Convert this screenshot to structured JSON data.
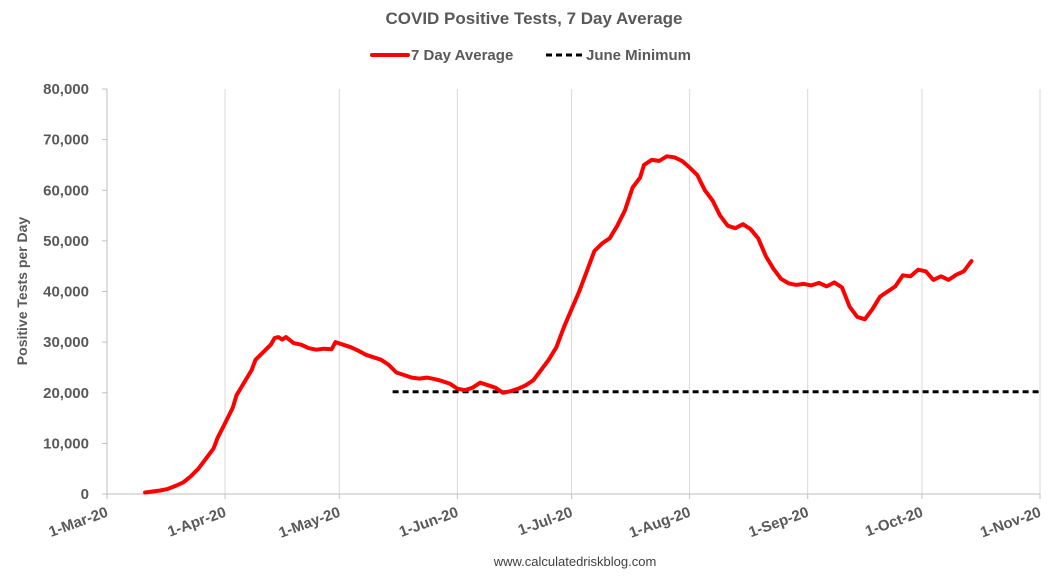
{
  "chart_data": {
    "type": "line",
    "title": "COVID Positive Tests, 7 Day Average",
    "ylabel": "Positive Tests per Day",
    "xlabel": "",
    "ylim": [
      0,
      80000
    ],
    "xlim": [
      "2020-03-01",
      "2020-11-01"
    ],
    "y_ticks": [
      0,
      10000,
      20000,
      30000,
      40000,
      50000,
      60000,
      70000,
      80000
    ],
    "y_tick_labels": [
      "0",
      "10,000",
      "20,000",
      "30,000",
      "40,000",
      "50,000",
      "60,000",
      "70,000",
      "80,000"
    ],
    "x_ticks": [
      "2020-03-01",
      "2020-04-01",
      "2020-05-01",
      "2020-06-01",
      "2020-07-01",
      "2020-08-01",
      "2020-09-01",
      "2020-10-01",
      "2020-11-01"
    ],
    "x_tick_labels": [
      "1-Mar-20",
      "1-Apr-20",
      "1-May-20",
      "1-Jun-20",
      "1-Jul-20",
      "1-Aug-20",
      "1-Sep-20",
      "1-Oct-20",
      "1-Nov-20"
    ],
    "grid": "vertical",
    "legend_position": "top-center",
    "series": [
      {
        "name": "7 Day Average",
        "color": "#ff0000",
        "style": "solid",
        "points": [
          [
            "2020-03-11",
            300
          ],
          [
            "2020-03-13",
            500
          ],
          [
            "2020-03-15",
            700
          ],
          [
            "2020-03-17",
            1000
          ],
          [
            "2020-03-19",
            1600
          ],
          [
            "2020-03-21",
            2300
          ],
          [
            "2020-03-23",
            3500
          ],
          [
            "2020-03-25",
            5000
          ],
          [
            "2020-03-27",
            7000
          ],
          [
            "2020-03-29",
            9000
          ],
          [
            "2020-03-30",
            11000
          ],
          [
            "2020-04-01",
            14000
          ],
          [
            "2020-04-03",
            17000
          ],
          [
            "2020-04-04",
            19500
          ],
          [
            "2020-04-06",
            22000
          ],
          [
            "2020-04-08",
            24500
          ],
          [
            "2020-04-09",
            26500
          ],
          [
            "2020-04-11",
            28000
          ],
          [
            "2020-04-13",
            29500
          ],
          [
            "2020-04-14",
            30800
          ],
          [
            "2020-04-15",
            31000
          ],
          [
            "2020-04-16",
            30500
          ],
          [
            "2020-04-17",
            31000
          ],
          [
            "2020-04-19",
            29800
          ],
          [
            "2020-04-21",
            29500
          ],
          [
            "2020-04-23",
            28800
          ],
          [
            "2020-04-25",
            28500
          ],
          [
            "2020-04-27",
            28700
          ],
          [
            "2020-04-29",
            28600
          ],
          [
            "2020-04-30",
            30000
          ],
          [
            "2020-05-02",
            29500
          ],
          [
            "2020-05-04",
            29000
          ],
          [
            "2020-05-06",
            28300
          ],
          [
            "2020-05-08",
            27500
          ],
          [
            "2020-05-10",
            27000
          ],
          [
            "2020-05-12",
            26500
          ],
          [
            "2020-05-14",
            25500
          ],
          [
            "2020-05-16",
            24000
          ],
          [
            "2020-05-18",
            23500
          ],
          [
            "2020-05-20",
            23000
          ],
          [
            "2020-05-22",
            22800
          ],
          [
            "2020-05-24",
            23000
          ],
          [
            "2020-05-26",
            22700
          ],
          [
            "2020-05-28",
            22300
          ],
          [
            "2020-05-30",
            21800
          ],
          [
            "2020-06-01",
            20800
          ],
          [
            "2020-06-03",
            20500
          ],
          [
            "2020-06-05",
            21000
          ],
          [
            "2020-06-07",
            22000
          ],
          [
            "2020-06-09",
            21500
          ],
          [
            "2020-06-11",
            21000
          ],
          [
            "2020-06-13",
            20000
          ],
          [
            "2020-06-15",
            20300
          ],
          [
            "2020-06-17",
            20800
          ],
          [
            "2020-06-19",
            21500
          ],
          [
            "2020-06-21",
            22500
          ],
          [
            "2020-06-23",
            24500
          ],
          [
            "2020-06-25",
            26500
          ],
          [
            "2020-06-27",
            29000
          ],
          [
            "2020-06-29",
            33000
          ],
          [
            "2020-07-01",
            36500
          ],
          [
            "2020-07-03",
            40000
          ],
          [
            "2020-07-05",
            44000
          ],
          [
            "2020-07-07",
            48000
          ],
          [
            "2020-07-09",
            49500
          ],
          [
            "2020-07-11",
            50500
          ],
          [
            "2020-07-13",
            53000
          ],
          [
            "2020-07-15",
            56000
          ],
          [
            "2020-07-17",
            60500
          ],
          [
            "2020-07-19",
            62500
          ],
          [
            "2020-07-20",
            65000
          ],
          [
            "2020-07-22",
            66000
          ],
          [
            "2020-07-24",
            65800
          ],
          [
            "2020-07-26",
            66700
          ],
          [
            "2020-07-28",
            66500
          ],
          [
            "2020-07-30",
            65800
          ],
          [
            "2020-08-01",
            64500
          ],
          [
            "2020-08-03",
            63000
          ],
          [
            "2020-08-05",
            60000
          ],
          [
            "2020-08-07",
            58000
          ],
          [
            "2020-08-09",
            55000
          ],
          [
            "2020-08-11",
            53000
          ],
          [
            "2020-08-13",
            52500
          ],
          [
            "2020-08-15",
            53300
          ],
          [
            "2020-08-17",
            52300
          ],
          [
            "2020-08-19",
            50500
          ],
          [
            "2020-08-21",
            47000
          ],
          [
            "2020-08-23",
            44500
          ],
          [
            "2020-08-25",
            42500
          ],
          [
            "2020-08-27",
            41600
          ],
          [
            "2020-08-29",
            41300
          ],
          [
            "2020-08-31",
            41500
          ],
          [
            "2020-09-02",
            41200
          ],
          [
            "2020-09-04",
            41700
          ],
          [
            "2020-09-06",
            41000
          ],
          [
            "2020-09-08",
            41800
          ],
          [
            "2020-09-10",
            40800
          ],
          [
            "2020-09-12",
            37000
          ],
          [
            "2020-09-14",
            35000
          ],
          [
            "2020-09-16",
            34500
          ],
          [
            "2020-09-18",
            36500
          ],
          [
            "2020-09-20",
            39000
          ],
          [
            "2020-09-22",
            40000
          ],
          [
            "2020-09-24",
            41000
          ],
          [
            "2020-09-26",
            43200
          ],
          [
            "2020-09-28",
            43000
          ],
          [
            "2020-09-30",
            44300
          ],
          [
            "2020-10-02",
            44000
          ],
          [
            "2020-10-04",
            42300
          ],
          [
            "2020-10-06",
            43000
          ],
          [
            "2020-10-08",
            42300
          ],
          [
            "2020-10-10",
            43300
          ],
          [
            "2020-10-12",
            44000
          ],
          [
            "2020-10-14",
            46000
          ]
        ]
      },
      {
        "name": "June Minimum",
        "color": "#000000",
        "style": "dashed",
        "points": [
          [
            "2020-05-15",
            20200
          ],
          [
            "2020-11-01",
            20200
          ]
        ]
      }
    ],
    "source": "www.calculatedriskblog.com"
  }
}
